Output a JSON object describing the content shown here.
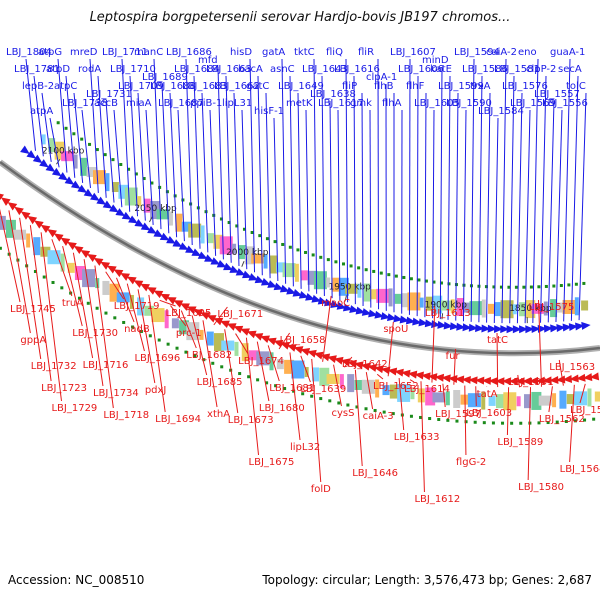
{
  "title": "Leptospira borgpetersenii serovar Hardjo-bovis JB197 chromos...",
  "footer": {
    "accession": "Accession: NC_008510",
    "summary": "Topology: circular; Length: 3,576,473 bp; Genes: 2,687"
  },
  "colors": {
    "forward": "#1a1ae6",
    "reverse": "#e61a1a",
    "backbone": "#808080",
    "tick": "#1a8a1a"
  },
  "ticks": [
    {
      "label": "2100 kbp",
      "kbp": 2100
    },
    {
      "label": "2050 kbp",
      "kbp": 2050
    },
    {
      "label": "2000 kbp",
      "kbp": 2000
    },
    {
      "label": "1950 kbp",
      "kbp": 1950
    },
    {
      "label": "1900 kbp",
      "kbp": 1900
    },
    {
      "label": "1850 kbp",
      "kbp": 1850
    }
  ],
  "forward_genes": [
    "LBJ_1804",
    "LBJ_1781",
    "lepB-2",
    "atpA",
    "atpG",
    "atpD",
    "atpC",
    "LBJ_1738",
    "mreD",
    "rodA",
    "LBJ_1731",
    "accB",
    "LBJ_1711",
    "LBJ_1710",
    "LBJ_1709",
    "miaA",
    "manC",
    "LBJ_1689",
    "LBJ_1688",
    "LBJ_1687",
    "LBJ_1686",
    "LBJ_1684",
    "LBJ_1683",
    "ppiB-1",
    "mfd",
    "LBJ_1663",
    "LBJ_1662",
    "lipL31",
    "hisD",
    "bacA",
    "gatC",
    "hisF-1",
    "gatA",
    "asnC",
    "LBJ_1649",
    "metK",
    "tktC",
    "LBJ_1643",
    "LBJ_1638",
    "LBJ_1617",
    "fliQ",
    "LBJ_1616",
    "fliP",
    "gmk",
    "fliR",
    "clpA-1",
    "flhB",
    "flhA",
    "LBJ_1607",
    "LBJ_1606",
    "flhF",
    "LBJ_1605",
    "minD",
    "katE",
    "LBJ_1599",
    "LBJ_1590",
    "LBJ_1594",
    "LBJ_1586",
    "trxA",
    "LBJ_1584",
    "caiA-2",
    "LBJ_1581",
    "LBJ_1576",
    "LBJ_1569",
    "eno",
    "clpP-2",
    "LBJ_1557",
    "LBJ_1556",
    "guaA-1",
    "secA",
    "tolC"
  ],
  "reverse_genes": [
    "LBJ_1745",
    "gppA",
    "LBJ_1732",
    "LBJ_1723",
    "LBJ_1729",
    "truA",
    "LBJ_1730",
    "LBJ_1716",
    "LBJ_1734",
    "LBJ_1718",
    "LBJ_1719",
    "nadB",
    "LBJ_1696",
    "pdxJ",
    "LBJ_1694",
    "LBJ_1695",
    "prc-1",
    "LBJ_1682",
    "LBJ_1685",
    "xthA",
    "LBJ_1671",
    "LBJ_1673",
    "LBJ_1674",
    "LBJ_1675",
    "LBJ_1680",
    "LBJ_1681",
    "LBJ_1658",
    "lipL32",
    "LBJ_1639",
    "folD",
    "maoC",
    "cysS",
    "LBJ_1642",
    "LBJ_1646",
    "caiA-3",
    "LBJ_1652",
    "spoU",
    "LBJ_1633",
    "LBJ_1614",
    "LBJ_1612",
    "LBJ_1613",
    "LBJ_1597",
    "fur",
    "flgG-2",
    "LBJ_1603",
    "tatA",
    "tatC",
    "LBJ_1589",
    "LBJ_1591",
    "LBJ_1580",
    "LBJ_1575",
    "LBJ_1562",
    "LBJ_1563",
    "LBJ_1564",
    "LBJ_1565"
  ]
}
